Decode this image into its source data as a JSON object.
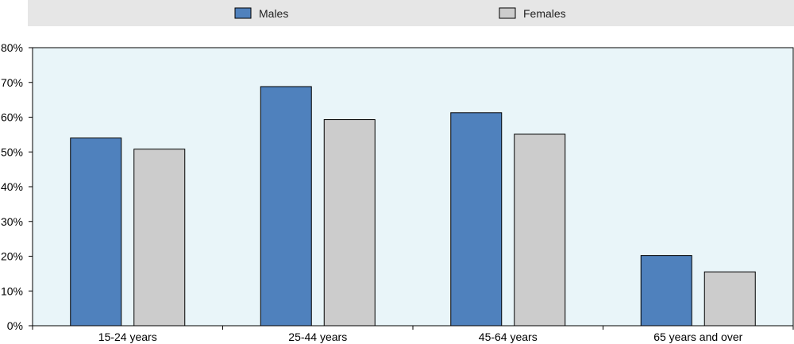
{
  "chart_data": {
    "type": "bar",
    "categories": [
      "15-24 years",
      "25-44 years",
      "45-64 years",
      "65 years and over"
    ],
    "series": [
      {
        "name": "Males",
        "values": [
          54.0,
          68.8,
          61.3,
          20.2
        ],
        "color": "#4f81bd"
      },
      {
        "name": "Females",
        "values": [
          50.8,
          59.3,
          55.1,
          15.5
        ],
        "color": "#cccccc"
      }
    ],
    "ylim": [
      0,
      80
    ],
    "y_ticks": [
      "0%",
      "10%",
      "20%",
      "30%",
      "40%",
      "50%",
      "60%",
      "70%",
      "80%"
    ],
    "legend_position": "top",
    "grid": false,
    "plot_background": "#e9f5f9"
  }
}
